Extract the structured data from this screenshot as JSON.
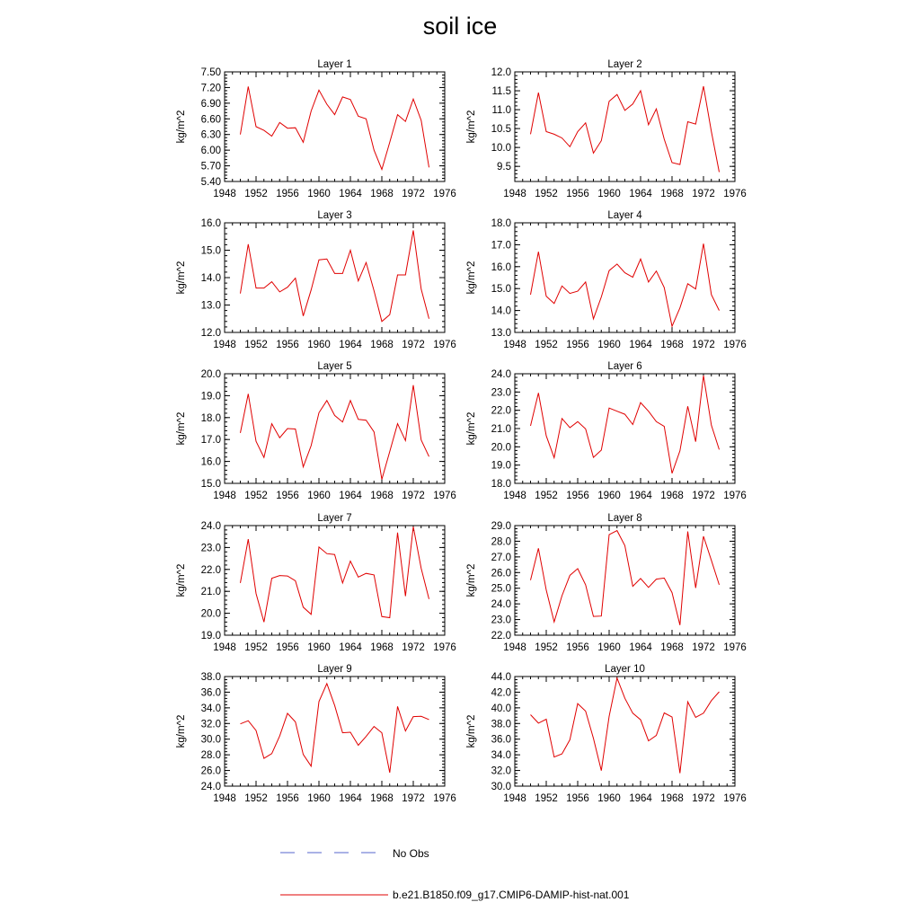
{
  "figure": {
    "title": "soil ice",
    "legend": [
      {
        "label": "No Obs",
        "color": "#5566cc",
        "style": "dashed"
      },
      {
        "label": "b.e21.B1850.f09_g17.CMIP6-DAMIP-hist-nat.001",
        "color": "#e00000",
        "style": "solid"
      }
    ]
  },
  "chart_data": [
    {
      "type": "line",
      "title": "Layer 1",
      "ylabel": "kg/m^2",
      "xlim": [
        1948,
        1976
      ],
      "xticks": [
        1948,
        1952,
        1956,
        1960,
        1964,
        1968,
        1972,
        1976
      ],
      "ylim": [
        5.4,
        7.5
      ],
      "yticks": [
        "5.40",
        "5.70",
        "6.00",
        "6.30",
        "6.60",
        "6.90",
        "7.20",
        "7.50"
      ],
      "x": [
        1950,
        1951,
        1952,
        1953,
        1954,
        1955,
        1956,
        1957,
        1958,
        1959,
        1960,
        1961,
        1962,
        1963,
        1964,
        1965,
        1966,
        1967,
        1968,
        1969,
        1970,
        1971,
        1972,
        1973,
        1974
      ],
      "series": [
        {
          "color": "#e00000",
          "values": [
            6.3,
            7.22,
            6.45,
            6.38,
            6.27,
            6.53,
            6.42,
            6.43,
            6.15,
            6.75,
            7.15,
            6.88,
            6.68,
            7.02,
            6.97,
            6.65,
            6.6,
            6.0,
            5.63,
            6.15,
            6.68,
            6.55,
            6.98,
            6.57,
            5.67
          ]
        }
      ]
    },
    {
      "type": "line",
      "title": "Layer 2",
      "ylabel": "kg/m^2",
      "xlim": [
        1948,
        1976
      ],
      "xticks": [
        1948,
        1952,
        1956,
        1960,
        1964,
        1968,
        1972,
        1976
      ],
      "ylim": [
        9.1,
        12.0
      ],
      "yticks": [
        "9.5",
        "10.0",
        "10.5",
        "11.0",
        "11.5",
        "12.0"
      ],
      "x": [
        1950,
        1951,
        1952,
        1953,
        1954,
        1955,
        1956,
        1957,
        1958,
        1959,
        1960,
        1961,
        1962,
        1963,
        1964,
        1965,
        1966,
        1967,
        1968,
        1969,
        1970,
        1971,
        1972,
        1973,
        1974
      ],
      "series": [
        {
          "color": "#e00000",
          "values": [
            10.35,
            11.45,
            10.42,
            10.35,
            10.25,
            10.02,
            10.42,
            10.65,
            9.85,
            10.18,
            11.22,
            11.4,
            10.98,
            11.15,
            11.5,
            10.6,
            11.02,
            10.22,
            9.6,
            9.55,
            10.68,
            10.62,
            11.62,
            10.42,
            9.35
          ]
        }
      ]
    },
    {
      "type": "line",
      "title": "Layer 3",
      "ylabel": "kg/m^2",
      "xlim": [
        1948,
        1976
      ],
      "xticks": [
        1948,
        1952,
        1956,
        1960,
        1964,
        1968,
        1972,
        1976
      ],
      "ylim": [
        12.0,
        16.0
      ],
      "yticks": [
        "12.0",
        "13.0",
        "14.0",
        "15.0",
        "16.0"
      ],
      "x": [
        1950,
        1951,
        1952,
        1953,
        1954,
        1955,
        1956,
        1957,
        1958,
        1959,
        1960,
        1961,
        1962,
        1963,
        1964,
        1965,
        1966,
        1967,
        1968,
        1969,
        1970,
        1971,
        1972,
        1973,
        1974
      ],
      "series": [
        {
          "color": "#e00000",
          "values": [
            13.42,
            15.22,
            13.62,
            13.62,
            13.85,
            13.48,
            13.65,
            13.98,
            12.6,
            13.55,
            14.65,
            14.68,
            14.15,
            14.15,
            15.0,
            13.88,
            14.55,
            13.52,
            12.4,
            12.65,
            14.1,
            14.1,
            15.72,
            13.58,
            12.5
          ]
        }
      ]
    },
    {
      "type": "line",
      "title": "Layer 4",
      "ylabel": "kg/m^2",
      "xlim": [
        1948,
        1976
      ],
      "xticks": [
        1948,
        1952,
        1956,
        1960,
        1964,
        1968,
        1972,
        1976
      ],
      "ylim": [
        13.0,
        18.0
      ],
      "yticks": [
        "13.0",
        "14.0",
        "15.0",
        "16.0",
        "17.0",
        "18.0"
      ],
      "x": [
        1950,
        1951,
        1952,
        1953,
        1954,
        1955,
        1956,
        1957,
        1958,
        1959,
        1960,
        1961,
        1962,
        1963,
        1964,
        1965,
        1966,
        1967,
        1968,
        1969,
        1970,
        1971,
        1972,
        1973,
        1974
      ],
      "series": [
        {
          "color": "#e00000",
          "values": [
            14.72,
            16.68,
            14.65,
            14.32,
            15.12,
            14.78,
            14.88,
            15.3,
            13.62,
            14.62,
            15.82,
            16.12,
            15.72,
            15.52,
            16.35,
            15.3,
            15.8,
            15.05,
            13.28,
            14.12,
            15.22,
            14.98,
            17.05,
            14.72,
            14.0
          ]
        }
      ]
    },
    {
      "type": "line",
      "title": "Layer 5",
      "ylabel": "kg/m^2",
      "xlim": [
        1948,
        1976
      ],
      "xticks": [
        1948,
        1952,
        1956,
        1960,
        1964,
        1968,
        1972,
        1976
      ],
      "ylim": [
        15.0,
        20.0
      ],
      "yticks": [
        "15.0",
        "16.0",
        "17.0",
        "18.0",
        "19.0",
        "20.0"
      ],
      "x": [
        1950,
        1951,
        1952,
        1953,
        1954,
        1955,
        1956,
        1957,
        1958,
        1959,
        1960,
        1961,
        1962,
        1963,
        1964,
        1965,
        1966,
        1967,
        1968,
        1969,
        1970,
        1971,
        1972,
        1973,
        1974
      ],
      "series": [
        {
          "color": "#e00000",
          "values": [
            17.3,
            19.08,
            16.92,
            16.18,
            17.72,
            17.08,
            17.5,
            17.48,
            15.75,
            16.72,
            18.22,
            18.78,
            18.1,
            17.8,
            18.78,
            17.92,
            17.88,
            17.35,
            15.18,
            16.45,
            17.72,
            16.95,
            19.48,
            16.98,
            16.22
          ]
        }
      ]
    },
    {
      "type": "line",
      "title": "Layer 6",
      "ylabel": "kg/m^2",
      "xlim": [
        1948,
        1976
      ],
      "xticks": [
        1948,
        1952,
        1956,
        1960,
        1964,
        1968,
        1972,
        1976
      ],
      "ylim": [
        18.0,
        24.0
      ],
      "yticks": [
        "18.0",
        "19.0",
        "20.0",
        "21.0",
        "22.0",
        "23.0",
        "24.0"
      ],
      "x": [
        1950,
        1951,
        1952,
        1953,
        1954,
        1955,
        1956,
        1957,
        1958,
        1959,
        1960,
        1961,
        1962,
        1963,
        1964,
        1965,
        1966,
        1967,
        1968,
        1969,
        1970,
        1971,
        1972,
        1973,
        1974
      ],
      "series": [
        {
          "color": "#e00000",
          "values": [
            21.15,
            22.95,
            20.6,
            19.4,
            21.55,
            21.05,
            21.38,
            20.98,
            19.42,
            19.82,
            22.12,
            21.95,
            21.78,
            21.22,
            22.42,
            21.95,
            21.38,
            21.12,
            18.55,
            19.78,
            22.22,
            20.28,
            23.9,
            21.18,
            19.85
          ]
        }
      ]
    },
    {
      "type": "line",
      "title": "Layer 7",
      "ylabel": "kg/m^2",
      "xlim": [
        1948,
        1976
      ],
      "xticks": [
        1948,
        1952,
        1956,
        1960,
        1964,
        1968,
        1972,
        1976
      ],
      "ylim": [
        19.0,
        24.0
      ],
      "yticks": [
        "19.0",
        "20.0",
        "21.0",
        "22.0",
        "23.0",
        "24.0"
      ],
      "x": [
        1950,
        1951,
        1952,
        1953,
        1954,
        1955,
        1956,
        1957,
        1958,
        1959,
        1960,
        1961,
        1962,
        1963,
        1964,
        1965,
        1966,
        1967,
        1968,
        1969,
        1970,
        1971,
        1972,
        1973,
        1974
      ],
      "series": [
        {
          "color": "#e00000",
          "values": [
            21.38,
            23.38,
            20.9,
            19.6,
            21.6,
            21.72,
            21.7,
            21.48,
            20.28,
            19.95,
            23.02,
            22.72,
            22.68,
            21.38,
            22.38,
            21.65,
            21.82,
            21.75,
            19.85,
            19.8,
            23.68,
            20.78,
            23.95,
            22.05,
            20.65
          ]
        }
      ]
    },
    {
      "type": "line",
      "title": "Layer 8",
      "ylabel": "kg/m^2",
      "xlim": [
        1948,
        1976
      ],
      "xticks": [
        1948,
        1952,
        1956,
        1960,
        1964,
        1968,
        1972,
        1976
      ],
      "ylim": [
        22.0,
        29.0
      ],
      "yticks": [
        "22.0",
        "23.0",
        "24.0",
        "25.0",
        "26.0",
        "27.0",
        "28.0",
        "29.0"
      ],
      "x": [
        1950,
        1951,
        1952,
        1953,
        1954,
        1955,
        1956,
        1957,
        1958,
        1959,
        1960,
        1961,
        1962,
        1963,
        1964,
        1965,
        1966,
        1967,
        1968,
        1969,
        1970,
        1971,
        1972,
        1973,
        1974
      ],
      "series": [
        {
          "color": "#e00000",
          "values": [
            25.52,
            27.55,
            24.88,
            22.85,
            24.52,
            25.82,
            26.25,
            25.22,
            23.2,
            23.22,
            28.42,
            28.68,
            27.72,
            25.12,
            25.62,
            25.05,
            25.58,
            25.65,
            24.72,
            22.65,
            28.62,
            25.02,
            28.32,
            26.78,
            25.22
          ]
        }
      ]
    },
    {
      "type": "line",
      "title": "Layer 9",
      "ylabel": "kg/m^2",
      "xlim": [
        1948,
        1976
      ],
      "xticks": [
        1948,
        1952,
        1956,
        1960,
        1964,
        1968,
        1972,
        1976
      ],
      "ylim": [
        24.0,
        38.0
      ],
      "yticks": [
        "24.0",
        "26.0",
        "28.0",
        "30.0",
        "32.0",
        "34.0",
        "36.0",
        "38.0"
      ],
      "x": [
        1950,
        1951,
        1952,
        1953,
        1954,
        1955,
        1956,
        1957,
        1958,
        1959,
        1960,
        1961,
        1962,
        1963,
        1964,
        1965,
        1966,
        1967,
        1968,
        1969,
        1970,
        1971,
        1972,
        1973,
        1974
      ],
      "series": [
        {
          "color": "#e00000",
          "values": [
            31.95,
            32.35,
            31.1,
            27.55,
            28.15,
            30.4,
            33.3,
            32.2,
            28.05,
            26.55,
            34.8,
            37.1,
            34.3,
            30.82,
            30.88,
            29.22,
            30.35,
            31.62,
            30.82,
            25.72,
            34.18,
            31.05,
            32.88,
            32.92,
            32.5
          ]
        }
      ]
    },
    {
      "type": "line",
      "title": "Layer 10",
      "ylabel": "kg/m^2",
      "xlim": [
        1948,
        1976
      ],
      "xticks": [
        1948,
        1952,
        1956,
        1960,
        1964,
        1968,
        1972,
        1976
      ],
      "ylim": [
        30.0,
        44.0
      ],
      "yticks": [
        "30.0",
        "32.0",
        "34.0",
        "36.0",
        "38.0",
        "40.0",
        "42.0",
        "44.0"
      ],
      "x": [
        1950,
        1951,
        1952,
        1953,
        1954,
        1955,
        1956,
        1957,
        1958,
        1959,
        1960,
        1961,
        1962,
        1963,
        1964,
        1965,
        1966,
        1967,
        1968,
        1969,
        1970,
        1971,
        1972,
        1973,
        1974
      ],
      "series": [
        {
          "color": "#e00000",
          "values": [
            39.12,
            38.05,
            38.55,
            33.72,
            34.12,
            35.92,
            40.55,
            39.58,
            36.12,
            31.98,
            38.92,
            43.8,
            41.22,
            39.32,
            38.48,
            35.78,
            36.48,
            39.35,
            38.82,
            31.65,
            40.78,
            38.78,
            39.32,
            40.92,
            42.05
          ]
        }
      ]
    }
  ]
}
